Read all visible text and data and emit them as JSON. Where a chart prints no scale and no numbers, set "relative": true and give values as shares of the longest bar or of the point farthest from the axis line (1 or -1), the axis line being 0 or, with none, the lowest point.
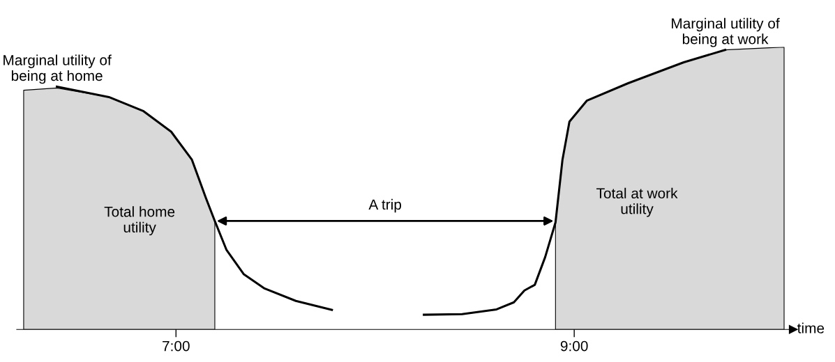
{
  "chart_data": {
    "type": "line",
    "relative": true,
    "xlabel": "time",
    "xlim": [
      6.2,
      10.1
    ],
    "xticks": [
      {
        "value": 7,
        "label": "7:00"
      },
      {
        "value": 9,
        "label": "9:00"
      }
    ],
    "grid": false,
    "legend": false,
    "marker": "none",
    "line_style": "solid",
    "series": [
      {
        "type": "area",
        "name": "Total home\nutility",
        "color": "#d9d9d9",
        "x": [
          6.235,
          6.402,
          6.663,
          6.837,
          6.976,
          7.08,
          7.15,
          7.195
        ],
        "values": [
          0.847,
          0.855,
          0.823,
          0.773,
          0.7,
          0.601,
          0.466,
          0.384
        ]
      },
      {
        "type": "area",
        "name": "Total at work\nutility",
        "color": "#d9d9d9",
        "x": [
          8.906,
          8.941,
          8.976,
          9.063,
          9.271,
          9.55,
          9.758,
          10.054
        ],
        "values": [
          0.379,
          0.601,
          0.736,
          0.81,
          0.872,
          0.946,
          0.99,
          1.0
        ]
      },
      {
        "name": "Marginal utility of\nbeing at home",
        "color": "#000000",
        "x": [
          6.402,
          6.663,
          6.837,
          6.976,
          7.08,
          7.15,
          7.195,
          7.254,
          7.341,
          7.445,
          7.602,
          7.783
        ],
        "values": [
          0.86,
          0.823,
          0.773,
          0.7,
          0.601,
          0.466,
          0.384,
          0.281,
          0.195,
          0.145,
          0.101,
          0.069
        ]
      },
      {
        "name": "Marginal utility of\nbeing at work",
        "color": "#000000",
        "x": [
          8.245,
          8.437,
          8.61,
          8.697,
          8.75,
          8.802,
          8.854,
          8.906,
          8.941,
          8.976,
          9.063,
          9.271,
          9.55,
          9.758
        ],
        "values": [
          0.052,
          0.054,
          0.071,
          0.096,
          0.138,
          0.158,
          0.256,
          0.379,
          0.601,
          0.736,
          0.81,
          0.872,
          0.946,
          0.99
        ]
      }
    ],
    "annotations": [
      "A trip"
    ]
  }
}
